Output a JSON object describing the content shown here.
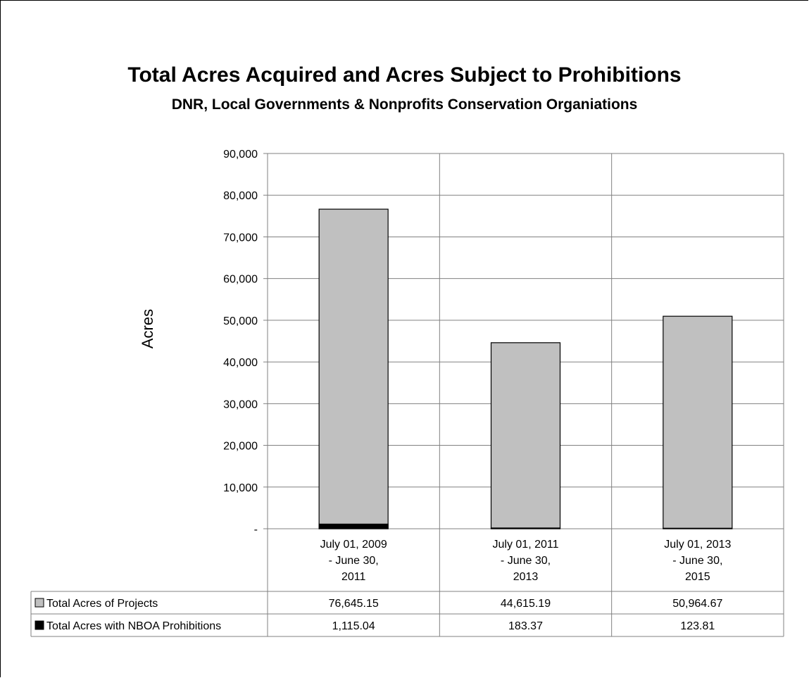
{
  "chart_data": {
    "type": "bar",
    "stacked": false,
    "title": "Total Acres Acquired and Acres Subject to Prohibitions",
    "subtitle": "DNR, Local Governments & Nonprofits Conservation Organiations",
    "ylabel": "Acres",
    "ylim": [
      0,
      90000
    ],
    "yticks": [
      {
        "value": 0,
        "label": "-"
      },
      {
        "value": 10000,
        "label": "10,000"
      },
      {
        "value": 20000,
        "label": "20,000"
      },
      {
        "value": 30000,
        "label": "30,000"
      },
      {
        "value": 40000,
        "label": "40,000"
      },
      {
        "value": 50000,
        "label": "50,000"
      },
      {
        "value": 60000,
        "label": "60,000"
      },
      {
        "value": 70000,
        "label": "70,000"
      },
      {
        "value": 80000,
        "label": "80,000"
      },
      {
        "value": 90000,
        "label": "90,000"
      }
    ],
    "categories": [
      [
        "July 01, 2009",
        "- June 30,",
        "2011"
      ],
      [
        "July 01, 2011",
        "- June 30,",
        "2013"
      ],
      [
        "July 01, 2013",
        "- June 30,",
        "2015"
      ]
    ],
    "series": [
      {
        "name": "Total Acres of Projects",
        "color": "#c0c0c0",
        "values": [
          76645.15,
          44615.19,
          50964.67
        ],
        "labels": [
          "76,645.15",
          "44,615.19",
          "50,964.67"
        ]
      },
      {
        "name": "Total Acres with NBOA Prohibitions",
        "color": "#000000",
        "values": [
          1115.04,
          183.37,
          123.81
        ],
        "labels": [
          "1,115.04",
          "183.37",
          "123.81"
        ]
      }
    ],
    "grid": true,
    "legend": "data-table"
  }
}
